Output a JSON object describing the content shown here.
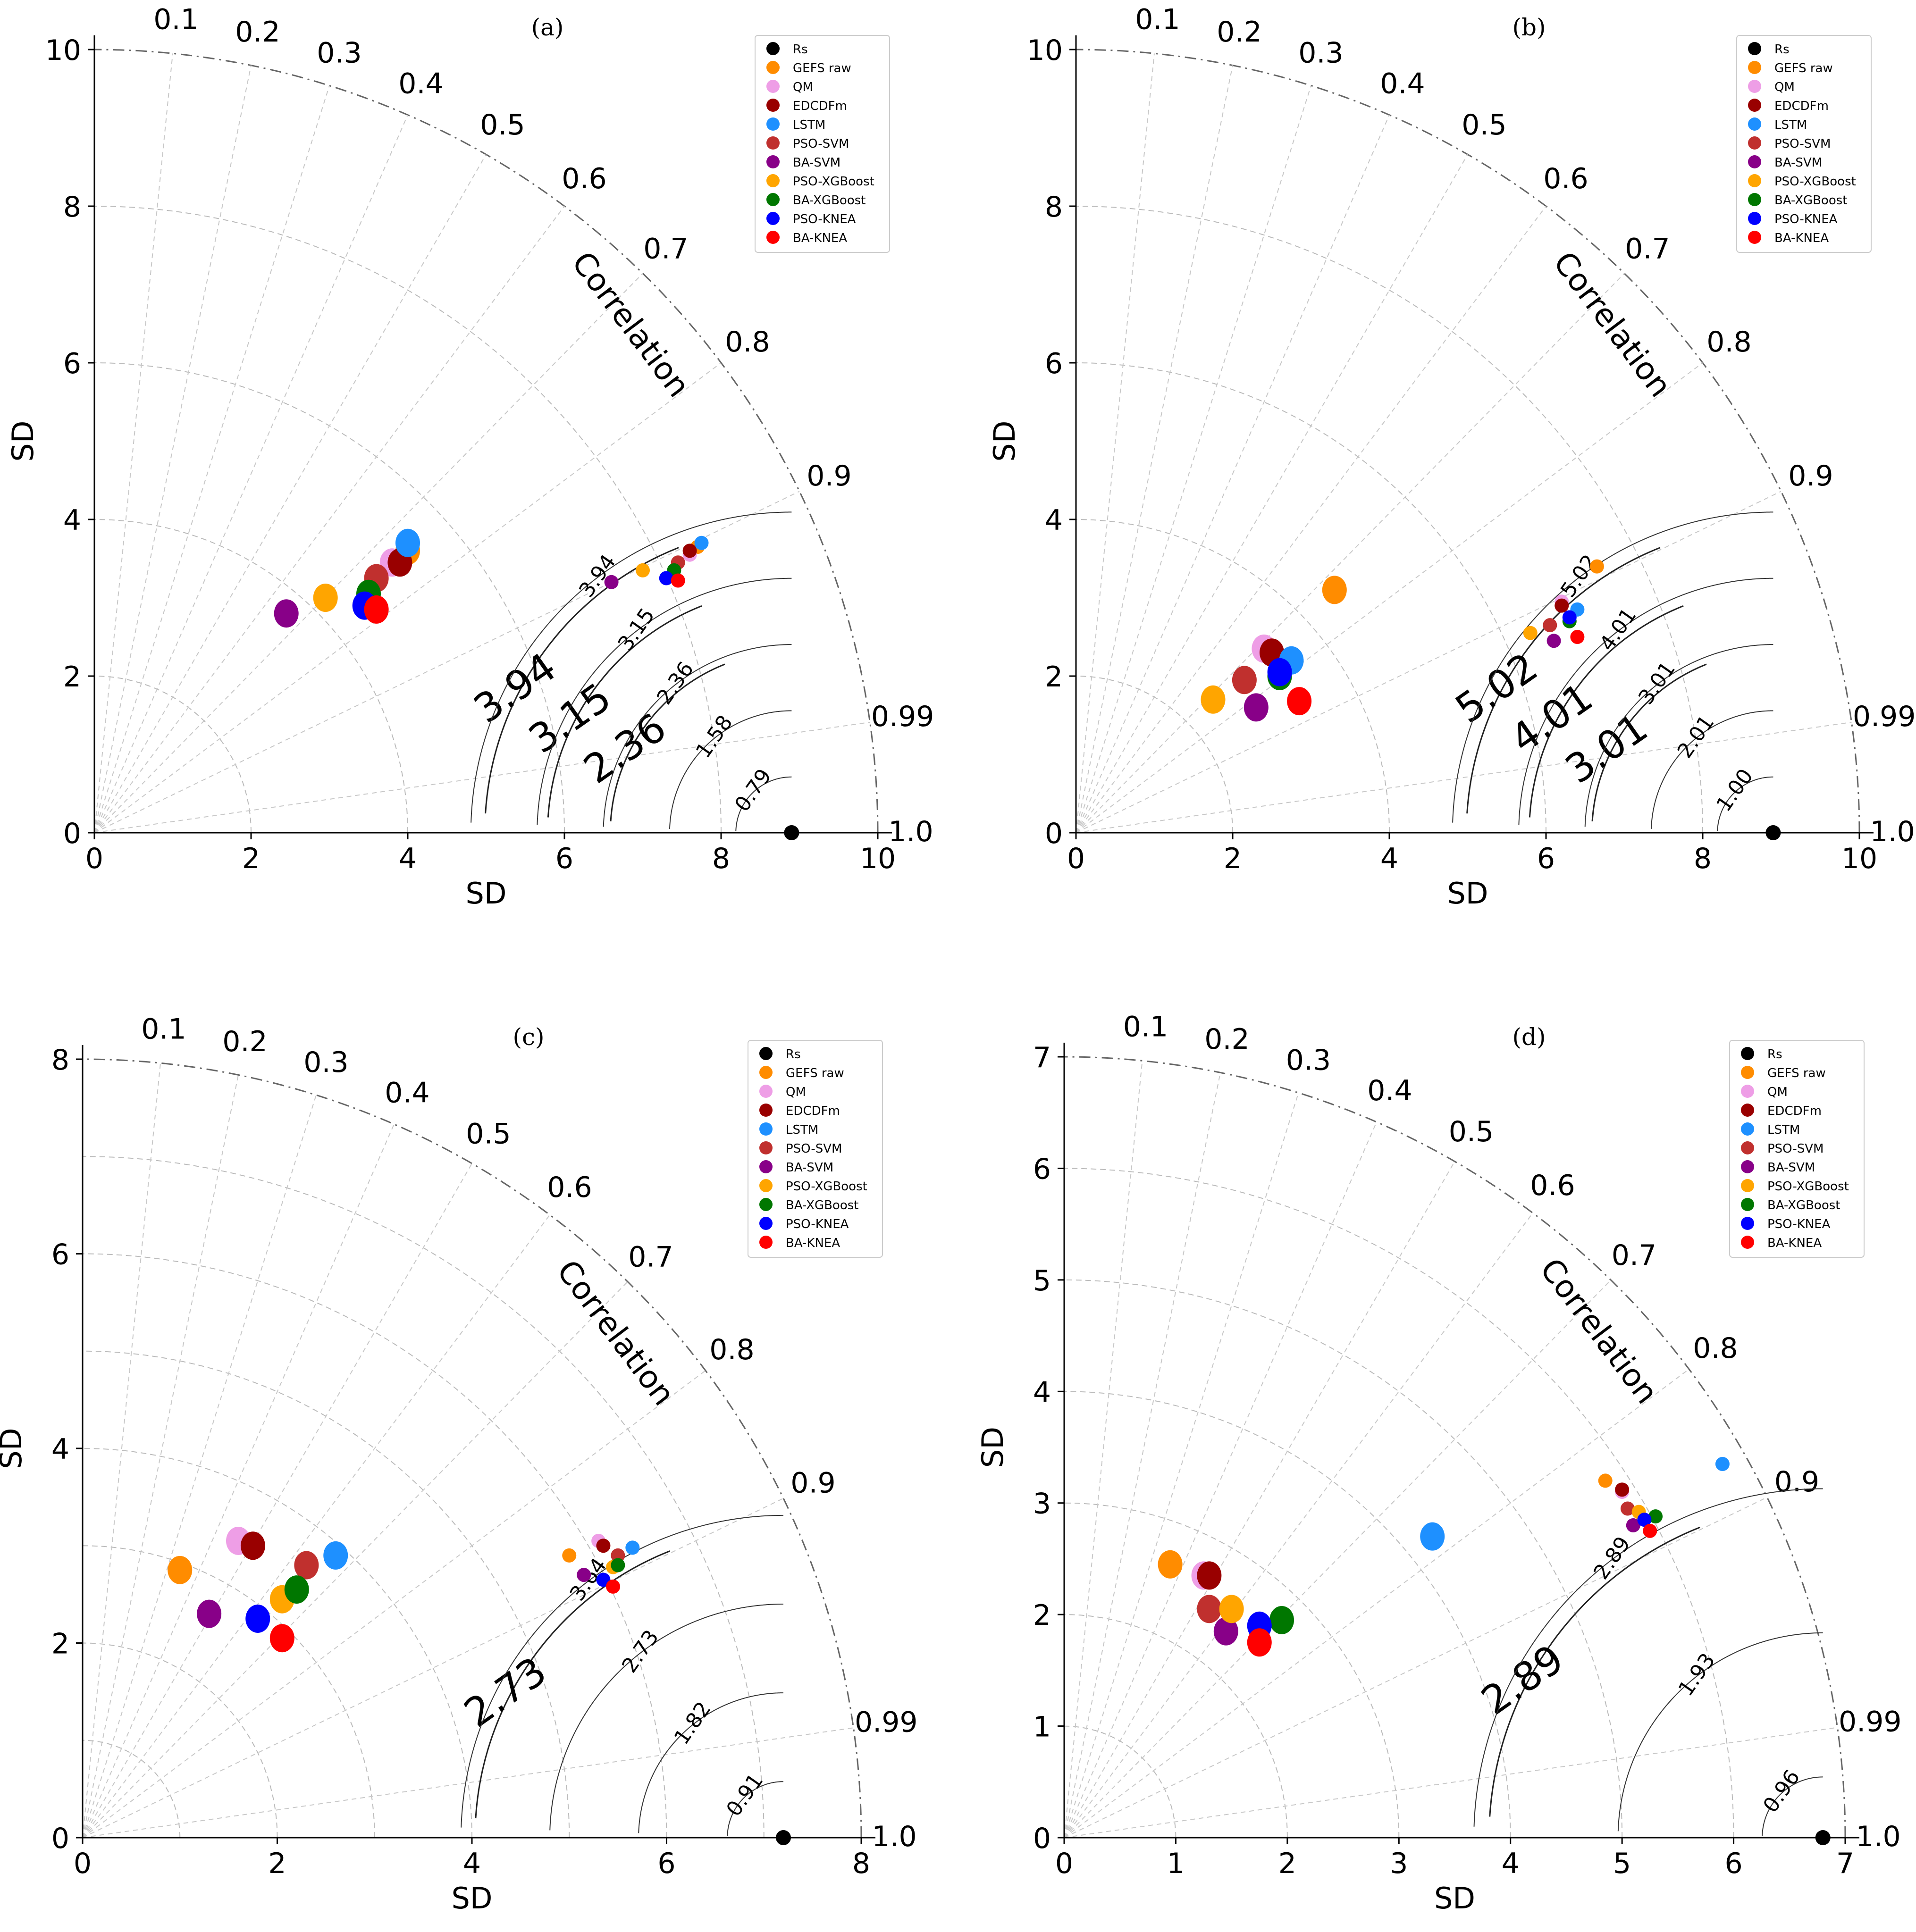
{
  "legend_entries": [
    {
      "key": "Rs",
      "color": "#000000"
    },
    {
      "key": "GEFS raw",
      "color": "#ff8c00"
    },
    {
      "key": "QM",
      "color": "#ee9ee6"
    },
    {
      "key": "EDCDFm",
      "color": "#990000"
    },
    {
      "key": "LSTM",
      "color": "#1e90ff"
    },
    {
      "key": "PSO-SVM",
      "color": "#c0302e"
    },
    {
      "key": "BA-SVM",
      "color": "#880088"
    },
    {
      "key": "PSO-XGBoost",
      "color": "#ffa500"
    },
    {
      "key": "BA-XGBoost",
      "color": "#007700"
    },
    {
      "key": "PSO-KNEA",
      "color": "#0000ff"
    },
    {
      "key": "BA-KNEA",
      "color": "#ff0000"
    }
  ],
  "chart_data": [
    {
      "type": "scatter",
      "subtype": "taylor-diagram",
      "panel": "(a)",
      "xlabel": "SD",
      "ylabel": "SD",
      "corr_label": "Correlation",
      "xlim": [
        0,
        10
      ],
      "ticks": [
        "0",
        "2",
        "4",
        "6",
        "8",
        "10"
      ],
      "corr_ticks": [
        "0.1",
        "0.2",
        "0.3",
        "0.4",
        "0.5",
        "0.6",
        "0.7",
        "0.8",
        "0.9",
        "0.99",
        "1.0"
      ],
      "reference": {
        "name": "Rs",
        "sd": 8.9,
        "corr": 1.0
      },
      "rmsd_main": [
        "3.94",
        "3.15",
        "2.36"
      ],
      "rmsd_inset": [
        "3.94",
        "3.15",
        "2.36",
        "1.58",
        "0.79"
      ],
      "points_main": [
        {
          "name": "GEFS raw",
          "x": 4.0,
          "y": 3.6
        },
        {
          "name": "QM",
          "x": 3.8,
          "y": 3.45
        },
        {
          "name": "EDCDFm",
          "x": 3.9,
          "y": 3.45
        },
        {
          "name": "LSTM",
          "x": 4.0,
          "y": 3.7
        },
        {
          "name": "PSO-SVM",
          "x": 3.6,
          "y": 3.25
        },
        {
          "name": "BA-SVM",
          "x": 2.45,
          "y": 2.8
        },
        {
          "name": "PSO-XGBoost",
          "x": 2.95,
          "y": 3.0
        },
        {
          "name": "BA-XGBoost",
          "x": 3.5,
          "y": 3.05
        },
        {
          "name": "PSO-KNEA",
          "x": 3.45,
          "y": 2.9
        },
        {
          "name": "BA-KNEA",
          "x": 3.6,
          "y": 2.85
        }
      ],
      "points_inset": [
        {
          "name": "GEFS raw",
          "x": 7.7,
          "y": 3.65
        },
        {
          "name": "QM",
          "x": 7.6,
          "y": 3.55
        },
        {
          "name": "EDCDFm",
          "x": 7.6,
          "y": 3.6
        },
        {
          "name": "LSTM",
          "x": 7.75,
          "y": 3.7
        },
        {
          "name": "PSO-SVM",
          "x": 7.45,
          "y": 3.45
        },
        {
          "name": "BA-SVM",
          "x": 6.6,
          "y": 3.2
        },
        {
          "name": "PSO-XGBoost",
          "x": 7.0,
          "y": 3.35
        },
        {
          "name": "BA-XGBoost",
          "x": 7.4,
          "y": 3.35
        },
        {
          "name": "PSO-KNEA",
          "x": 7.3,
          "y": 3.25
        },
        {
          "name": "BA-KNEA",
          "x": 7.45,
          "y": 3.22
        }
      ]
    },
    {
      "type": "scatter",
      "subtype": "taylor-diagram",
      "panel": "(b)",
      "xlabel": "SD",
      "ylabel": "SD",
      "corr_label": "Correlation",
      "xlim": [
        0,
        10
      ],
      "ticks": [
        "0",
        "2",
        "4",
        "6",
        "8",
        "10"
      ],
      "corr_ticks": [
        "0.1",
        "0.2",
        "0.3",
        "0.4",
        "0.5",
        "0.6",
        "0.7",
        "0.8",
        "0.9",
        "0.99",
        "1.0"
      ],
      "reference": {
        "name": "Rs",
        "sd": 8.9,
        "corr": 1.0
      },
      "rmsd_main": [
        "5.02",
        "4.01",
        "3.01"
      ],
      "rmsd_inset": [
        "5.02",
        "4.01",
        "3.01",
        "2.01",
        "1.00"
      ],
      "points_main": [
        {
          "name": "GEFS raw",
          "x": 3.3,
          "y": 3.1
        },
        {
          "name": "QM",
          "x": 2.4,
          "y": 2.35
        },
        {
          "name": "EDCDFm",
          "x": 2.5,
          "y": 2.3
        },
        {
          "name": "LSTM",
          "x": 2.75,
          "y": 2.2
        },
        {
          "name": "PSO-SVM",
          "x": 2.15,
          "y": 1.95
        },
        {
          "name": "BA-SVM",
          "x": 2.3,
          "y": 1.6
        },
        {
          "name": "PSO-XGBoost",
          "x": 1.75,
          "y": 1.7
        },
        {
          "name": "BA-XGBoost",
          "x": 2.6,
          "y": 2.0
        },
        {
          "name": "PSO-KNEA",
          "x": 2.6,
          "y": 2.05
        },
        {
          "name": "BA-KNEA",
          "x": 2.85,
          "y": 1.68
        }
      ],
      "points_inset": [
        {
          "name": "GEFS raw",
          "x": 6.65,
          "y": 3.4
        },
        {
          "name": "QM",
          "x": 6.2,
          "y": 2.95
        },
        {
          "name": "EDCDFm",
          "x": 6.2,
          "y": 2.9
        },
        {
          "name": "LSTM",
          "x": 6.4,
          "y": 2.85
        },
        {
          "name": "PSO-SVM",
          "x": 6.05,
          "y": 2.65
        },
        {
          "name": "BA-SVM",
          "x": 6.1,
          "y": 2.45
        },
        {
          "name": "PSO-XGBoost",
          "x": 5.8,
          "y": 2.55
        },
        {
          "name": "BA-XGBoost",
          "x": 6.3,
          "y": 2.7
        },
        {
          "name": "PSO-KNEA",
          "x": 6.3,
          "y": 2.75
        },
        {
          "name": "BA-KNEA",
          "x": 6.4,
          "y": 2.5
        }
      ]
    },
    {
      "type": "scatter",
      "subtype": "taylor-diagram",
      "panel": "(c)",
      "xlabel": "SD",
      "ylabel": "SD",
      "corr_label": "Correlation",
      "xlim": [
        0,
        8
      ],
      "ticks": [
        "0",
        "2",
        "4",
        "6",
        "8"
      ],
      "corr_ticks": [
        "0.1",
        "0.2",
        "0.3",
        "0.4",
        "0.5",
        "0.6",
        "0.7",
        "0.8",
        "0.9",
        "0.99",
        "1.0"
      ],
      "reference": {
        "name": "Rs",
        "sd": 7.2,
        "corr": 1.0
      },
      "rmsd_main": [
        "2.73"
      ],
      "rmsd_inset": [
        "3.64",
        "2.73",
        "1.82",
        "0.91"
      ],
      "points_main": [
        {
          "name": "GEFS raw",
          "x": 1.0,
          "y": 2.75
        },
        {
          "name": "QM",
          "x": 1.6,
          "y": 3.05
        },
        {
          "name": "EDCDFm",
          "x": 1.75,
          "y": 3.0
        },
        {
          "name": "LSTM",
          "x": 2.6,
          "y": 2.9
        },
        {
          "name": "PSO-SVM",
          "x": 2.3,
          "y": 2.8
        },
        {
          "name": "BA-SVM",
          "x": 1.3,
          "y": 2.3
        },
        {
          "name": "PSO-XGBoost",
          "x": 2.05,
          "y": 2.45
        },
        {
          "name": "BA-XGBoost",
          "x": 2.2,
          "y": 2.55
        },
        {
          "name": "PSO-KNEA",
          "x": 1.8,
          "y": 2.25
        },
        {
          "name": "BA-KNEA",
          "x": 2.05,
          "y": 2.05
        }
      ],
      "points_inset": [
        {
          "name": "GEFS raw",
          "x": 5.0,
          "y": 2.9
        },
        {
          "name": "QM",
          "x": 5.3,
          "y": 3.05
        },
        {
          "name": "EDCDFm",
          "x": 5.35,
          "y": 3.0
        },
        {
          "name": "LSTM",
          "x": 5.65,
          "y": 2.98
        },
        {
          "name": "PSO-SVM",
          "x": 5.5,
          "y": 2.9
        },
        {
          "name": "BA-SVM",
          "x": 5.15,
          "y": 2.7
        },
        {
          "name": "PSO-XGBoost",
          "x": 5.45,
          "y": 2.78
        },
        {
          "name": "BA-XGBoost",
          "x": 5.5,
          "y": 2.8
        },
        {
          "name": "PSO-KNEA",
          "x": 5.35,
          "y": 2.65
        },
        {
          "name": "BA-KNEA",
          "x": 5.45,
          "y": 2.58
        }
      ]
    },
    {
      "type": "scatter",
      "subtype": "taylor-diagram",
      "panel": "(d)",
      "xlabel": "SD",
      "ylabel": "SD",
      "corr_label": "Correlation",
      "xlim": [
        0,
        7
      ],
      "ticks": [
        "0",
        "1",
        "2",
        "3",
        "4",
        "5",
        "6",
        "7"
      ],
      "corr_ticks": [
        "0.1",
        "0.2",
        "0.3",
        "0.4",
        "0.5",
        "0.6",
        "0.7",
        "0.8",
        "0.9",
        "0.99",
        "1.0"
      ],
      "reference": {
        "name": "Rs",
        "sd": 6.8,
        "corr": 1.0
      },
      "rmsd_main": [
        "2.89"
      ],
      "rmsd_inset": [
        "2.89",
        "1.93",
        "0.96"
      ],
      "points_main": [
        {
          "name": "GEFS raw",
          "x": 0.95,
          "y": 2.45
        },
        {
          "name": "QM",
          "x": 1.25,
          "y": 2.35
        },
        {
          "name": "EDCDFm",
          "x": 1.3,
          "y": 2.35
        },
        {
          "name": "LSTM",
          "x": 3.3,
          "y": 2.7
        },
        {
          "name": "PSO-SVM",
          "x": 1.3,
          "y": 2.05
        },
        {
          "name": "BA-SVM",
          "x": 1.45,
          "y": 1.85
        },
        {
          "name": "PSO-XGBoost",
          "x": 1.5,
          "y": 2.05
        },
        {
          "name": "BA-XGBoost",
          "x": 1.95,
          "y": 1.95
        },
        {
          "name": "PSO-KNEA",
          "x": 1.75,
          "y": 1.9
        },
        {
          "name": "BA-KNEA",
          "x": 1.75,
          "y": 1.75
        }
      ],
      "points_inset": [
        {
          "name": "GEFS raw",
          "x": 4.85,
          "y": 3.2
        },
        {
          "name": "QM",
          "x": 5.0,
          "y": 3.1
        },
        {
          "name": "EDCDFm",
          "x": 5.0,
          "y": 3.12
        },
        {
          "name": "LSTM",
          "x": 5.9,
          "y": 3.35
        },
        {
          "name": "PSO-SVM",
          "x": 5.05,
          "y": 2.95
        },
        {
          "name": "BA-SVM",
          "x": 5.1,
          "y": 2.8
        },
        {
          "name": "PSO-XGBoost",
          "x": 5.15,
          "y": 2.92
        },
        {
          "name": "BA-XGBoost",
          "x": 5.3,
          "y": 2.88
        },
        {
          "name": "PSO-KNEA",
          "x": 5.2,
          "y": 2.85
        },
        {
          "name": "BA-KNEA",
          "x": 5.25,
          "y": 2.75
        }
      ]
    }
  ]
}
